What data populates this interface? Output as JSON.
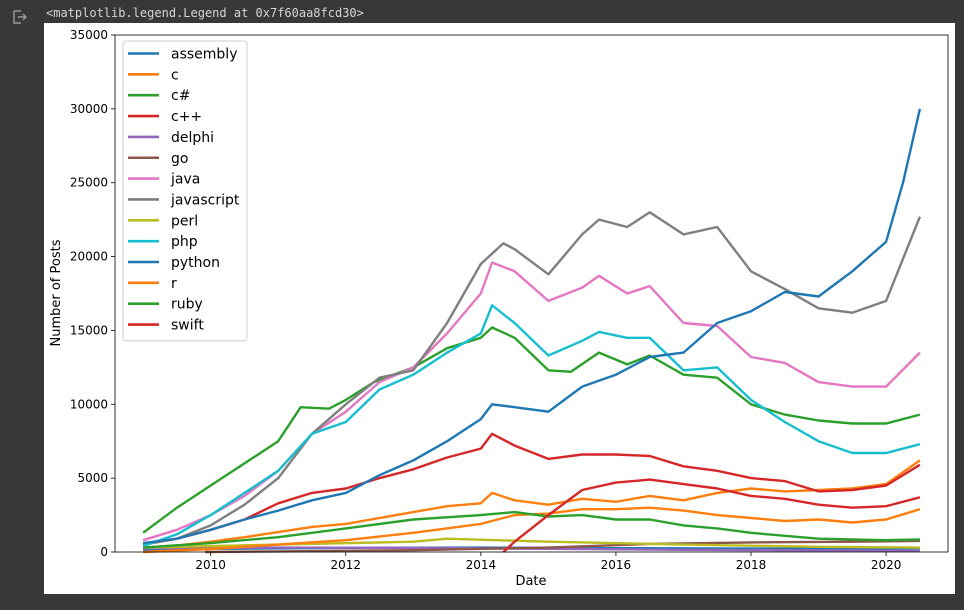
{
  "output": {
    "repr_text": "<matplotlib.legend.Legend at 0x7f60aa8fcd30>",
    "icon": "output-arrow-icon"
  },
  "chart_data": {
    "type": "line",
    "title": "",
    "xlabel": "Date",
    "ylabel": "Number of Posts",
    "xlim": [
      "2008-08",
      "2020-12"
    ],
    "ylim": [
      0,
      35000
    ],
    "grid": false,
    "legend_placement": "top-left",
    "x_ticks": [
      "2010",
      "2012",
      "2014",
      "2016",
      "2018",
      "2020"
    ],
    "y_ticks": [
      "0",
      "5000",
      "10000",
      "15000",
      "20000",
      "25000",
      "30000",
      "35000"
    ],
    "series": [
      {
        "name": "assembly",
        "color": "#1f77b4",
        "points": [
          [
            "2009-01",
            150
          ],
          [
            "2010-01",
            220
          ],
          [
            "2012-01",
            280
          ],
          [
            "2014-01",
            300
          ],
          [
            "2016-01",
            260
          ],
          [
            "2018-01",
            230
          ],
          [
            "2020-07",
            250
          ]
        ]
      },
      {
        "name": "c",
        "color": "#ff7f0e",
        "points": [
          [
            "2009-01",
            300
          ],
          [
            "2009-07",
            450
          ],
          [
            "2010-01",
            700
          ],
          [
            "2010-07",
            1000
          ],
          [
            "2011-01",
            1350
          ],
          [
            "2011-07",
            1700
          ],
          [
            "2012-01",
            1900
          ],
          [
            "2012-07",
            2300
          ],
          [
            "2013-01",
            2700
          ],
          [
            "2013-07",
            3100
          ],
          [
            "2014-01",
            3300
          ],
          [
            "2014-03",
            4000
          ],
          [
            "2014-07",
            3500
          ],
          [
            "2015-01",
            3200
          ],
          [
            "2015-07",
            3600
          ],
          [
            "2016-01",
            3400
          ],
          [
            "2016-07",
            3800
          ],
          [
            "2017-01",
            3500
          ],
          [
            "2017-07",
            4000
          ],
          [
            "2018-01",
            4300
          ],
          [
            "2018-07",
            4100
          ],
          [
            "2019-01",
            4200
          ],
          [
            "2019-07",
            4300
          ],
          [
            "2020-01",
            4600
          ],
          [
            "2020-07",
            6200
          ]
        ]
      },
      {
        "name": "c#",
        "color": "#2ca02c",
        "points": [
          [
            "2009-01",
            1300
          ],
          [
            "2009-07",
            3000
          ],
          [
            "2010-01",
            4500
          ],
          [
            "2010-07",
            6000
          ],
          [
            "2011-01",
            7500
          ],
          [
            "2011-05",
            9800
          ],
          [
            "2011-10",
            9700
          ],
          [
            "2012-01",
            10300
          ],
          [
            "2012-06",
            11500
          ],
          [
            "2013-01",
            12500
          ],
          [
            "2013-07",
            13800
          ],
          [
            "2014-01",
            14500
          ],
          [
            "2014-03",
            15200
          ],
          [
            "2014-07",
            14500
          ],
          [
            "2015-01",
            12300
          ],
          [
            "2015-05",
            12200
          ],
          [
            "2015-10",
            13500
          ],
          [
            "2016-03",
            12700
          ],
          [
            "2016-07",
            13300
          ],
          [
            "2017-01",
            12000
          ],
          [
            "2017-07",
            11800
          ],
          [
            "2018-01",
            10000
          ],
          [
            "2018-07",
            9300
          ],
          [
            "2019-01",
            8900
          ],
          [
            "2019-07",
            8700
          ],
          [
            "2020-01",
            8700
          ],
          [
            "2020-07",
            9300
          ]
        ]
      },
      {
        "name": "c++",
        "color": "#d62728",
        "points": [
          [
            "2009-01",
            500
          ],
          [
            "2009-07",
            900
          ],
          [
            "2010-01",
            1500
          ],
          [
            "2010-07",
            2200
          ],
          [
            "2011-01",
            3300
          ],
          [
            "2011-07",
            4000
          ],
          [
            "2012-01",
            4300
          ],
          [
            "2012-07",
            5000
          ],
          [
            "2013-01",
            5600
          ],
          [
            "2013-07",
            6400
          ],
          [
            "2014-01",
            7000
          ],
          [
            "2014-03",
            8000
          ],
          [
            "2014-07",
            7200
          ],
          [
            "2015-01",
            6300
          ],
          [
            "2015-07",
            6600
          ],
          [
            "2016-01",
            6600
          ],
          [
            "2016-07",
            6500
          ],
          [
            "2017-01",
            5800
          ],
          [
            "2017-07",
            5500
          ],
          [
            "2018-01",
            5000
          ],
          [
            "2018-07",
            4800
          ],
          [
            "2019-01",
            4100
          ],
          [
            "2019-07",
            4200
          ],
          [
            "2020-01",
            4500
          ],
          [
            "2020-07",
            5900
          ]
        ]
      },
      {
        "name": "delphi",
        "color": "#9467bd",
        "points": [
          [
            "2009-01",
            250
          ],
          [
            "2011-01",
            300
          ],
          [
            "2013-01",
            280
          ],
          [
            "2015-01",
            220
          ],
          [
            "2017-01",
            150
          ],
          [
            "2019-01",
            100
          ],
          [
            "2020-07",
            80
          ]
        ]
      },
      {
        "name": "go",
        "color": "#8c564b",
        "points": [
          [
            "2009-12",
            0
          ],
          [
            "2011-01",
            40
          ],
          [
            "2013-01",
            120
          ],
          [
            "2015-01",
            300
          ],
          [
            "2016-07",
            550
          ],
          [
            "2018-01",
            650
          ],
          [
            "2019-07",
            700
          ],
          [
            "2020-07",
            750
          ]
        ]
      },
      {
        "name": "java",
        "color": "#e377c2",
        "points": [
          [
            "2009-01",
            800
          ],
          [
            "2009-07",
            1500
          ],
          [
            "2010-01",
            2500
          ],
          [
            "2010-07",
            3800
          ],
          [
            "2011-01",
            5500
          ],
          [
            "2011-07",
            8000
          ],
          [
            "2012-01",
            9500
          ],
          [
            "2012-07",
            11500
          ],
          [
            "2013-01",
            12500
          ],
          [
            "2013-07",
            14800
          ],
          [
            "2014-01",
            17500
          ],
          [
            "2014-03",
            19600
          ],
          [
            "2014-07",
            19000
          ],
          [
            "2015-01",
            17000
          ],
          [
            "2015-07",
            17900
          ],
          [
            "2015-10",
            18700
          ],
          [
            "2016-03",
            17500
          ],
          [
            "2016-07",
            18000
          ],
          [
            "2017-01",
            15500
          ],
          [
            "2017-07",
            15300
          ],
          [
            "2018-01",
            13200
          ],
          [
            "2018-07",
            12800
          ],
          [
            "2019-01",
            11500
          ],
          [
            "2019-07",
            11200
          ],
          [
            "2020-01",
            11200
          ],
          [
            "2020-07",
            13500
          ]
        ]
      },
      {
        "name": "javascript",
        "color": "#7f7f7f",
        "points": [
          [
            "2009-01",
            500
          ],
          [
            "2009-07",
            900
          ],
          [
            "2010-01",
            1800
          ],
          [
            "2010-07",
            3200
          ],
          [
            "2011-01",
            5000
          ],
          [
            "2011-07",
            8000
          ],
          [
            "2012-01",
            10000
          ],
          [
            "2012-07",
            11800
          ],
          [
            "2013-01",
            12300
          ],
          [
            "2013-07",
            15500
          ],
          [
            "2014-01",
            19500
          ],
          [
            "2014-05",
            20900
          ],
          [
            "2014-07",
            20500
          ],
          [
            "2015-01",
            18800
          ],
          [
            "2015-07",
            21500
          ],
          [
            "2015-10",
            22500
          ],
          [
            "2016-03",
            22000
          ],
          [
            "2016-07",
            23000
          ],
          [
            "2017-01",
            21500
          ],
          [
            "2017-07",
            22000
          ],
          [
            "2018-01",
            19000
          ],
          [
            "2018-07",
            17800
          ],
          [
            "2019-01",
            16500
          ],
          [
            "2019-07",
            16200
          ],
          [
            "2020-01",
            17000
          ],
          [
            "2020-07",
            22700
          ]
        ]
      },
      {
        "name": "perl",
        "color": "#bcbd22",
        "points": [
          [
            "2009-01",
            300
          ],
          [
            "2011-01",
            500
          ],
          [
            "2013-01",
            700
          ],
          [
            "2013-07",
            900
          ],
          [
            "2015-01",
            700
          ],
          [
            "2017-01",
            500
          ],
          [
            "2019-01",
            350
          ],
          [
            "2020-07",
            300
          ]
        ]
      },
      {
        "name": "php",
        "color": "#17becf",
        "points": [
          [
            "2009-01",
            400
          ],
          [
            "2009-07",
            1200
          ],
          [
            "2010-01",
            2500
          ],
          [
            "2010-07",
            4000
          ],
          [
            "2011-01",
            5500
          ],
          [
            "2011-07",
            8000
          ],
          [
            "2012-01",
            8800
          ],
          [
            "2012-07",
            11000
          ],
          [
            "2013-01",
            12000
          ],
          [
            "2013-07",
            13500
          ],
          [
            "2014-01",
            14800
          ],
          [
            "2014-03",
            16700
          ],
          [
            "2014-07",
            15500
          ],
          [
            "2015-01",
            13300
          ],
          [
            "2015-07",
            14300
          ],
          [
            "2015-10",
            14900
          ],
          [
            "2016-03",
            14500
          ],
          [
            "2016-07",
            14500
          ],
          [
            "2017-01",
            12300
          ],
          [
            "2017-07",
            12500
          ],
          [
            "2018-01",
            10300
          ],
          [
            "2018-07",
            8800
          ],
          [
            "2019-01",
            7500
          ],
          [
            "2019-07",
            6700
          ],
          [
            "2020-01",
            6700
          ],
          [
            "2020-07",
            7300
          ]
        ]
      },
      {
        "name": "python",
        "color": "#1f77b4",
        "points": [
          [
            "2009-01",
            600
          ],
          [
            "2009-07",
            900
          ],
          [
            "2010-01",
            1500
          ],
          [
            "2010-07",
            2200
          ],
          [
            "2011-01",
            2800
          ],
          [
            "2011-07",
            3500
          ],
          [
            "2012-01",
            4000
          ],
          [
            "2012-07",
            5200
          ],
          [
            "2013-01",
            6200
          ],
          [
            "2013-07",
            7500
          ],
          [
            "2014-01",
            9000
          ],
          [
            "2014-03",
            10000
          ],
          [
            "2014-07",
            9800
          ],
          [
            "2015-01",
            9500
          ],
          [
            "2015-07",
            11200
          ],
          [
            "2016-01",
            12000
          ],
          [
            "2016-07",
            13200
          ],
          [
            "2017-01",
            13500
          ],
          [
            "2017-07",
            15500
          ],
          [
            "2018-01",
            16300
          ],
          [
            "2018-07",
            17600
          ],
          [
            "2019-01",
            17300
          ],
          [
            "2019-07",
            19000
          ],
          [
            "2020-01",
            21000
          ],
          [
            "2020-04",
            25000
          ],
          [
            "2020-07",
            30000
          ]
        ]
      },
      {
        "name": "r",
        "color": "#ff7f0e",
        "points": [
          [
            "2009-01",
            0
          ],
          [
            "2010-01",
            200
          ],
          [
            "2011-01",
            500
          ],
          [
            "2012-01",
            800
          ],
          [
            "2013-01",
            1300
          ],
          [
            "2014-01",
            1900
          ],
          [
            "2014-07",
            2500
          ],
          [
            "2015-01",
            2600
          ],
          [
            "2015-07",
            2900
          ],
          [
            "2016-01",
            2900
          ],
          [
            "2016-07",
            3000
          ],
          [
            "2017-01",
            2800
          ],
          [
            "2017-07",
            2500
          ],
          [
            "2018-01",
            2300
          ],
          [
            "2018-07",
            2100
          ],
          [
            "2019-01",
            2200
          ],
          [
            "2019-07",
            2000
          ],
          [
            "2020-01",
            2200
          ],
          [
            "2020-07",
            2900
          ]
        ]
      },
      {
        "name": "ruby",
        "color": "#2ca02c",
        "points": [
          [
            "2009-01",
            300
          ],
          [
            "2010-01",
            600
          ],
          [
            "2011-01",
            1000
          ],
          [
            "2012-01",
            1600
          ],
          [
            "2013-01",
            2200
          ],
          [
            "2014-01",
            2500
          ],
          [
            "2014-07",
            2700
          ],
          [
            "2015-01",
            2400
          ],
          [
            "2015-07",
            2500
          ],
          [
            "2016-01",
            2200
          ],
          [
            "2016-07",
            2200
          ],
          [
            "2017-01",
            1800
          ],
          [
            "2017-07",
            1600
          ],
          [
            "2018-01",
            1300
          ],
          [
            "2018-07",
            1100
          ],
          [
            "2019-01",
            900
          ],
          [
            "2020-01",
            800
          ],
          [
            "2020-07",
            850
          ]
        ]
      },
      {
        "name": "swift",
        "color": "#d62728",
        "points": [
          [
            "2014-05",
            0
          ],
          [
            "2014-07",
            700
          ],
          [
            "2015-01",
            2500
          ],
          [
            "2015-07",
            4200
          ],
          [
            "2016-01",
            4700
          ],
          [
            "2016-07",
            4900
          ],
          [
            "2017-01",
            4600
          ],
          [
            "2017-07",
            4300
          ],
          [
            "2018-01",
            3800
          ],
          [
            "2018-07",
            3600
          ],
          [
            "2019-01",
            3200
          ],
          [
            "2019-07",
            3000
          ],
          [
            "2020-01",
            3100
          ],
          [
            "2020-07",
            3700
          ]
        ]
      }
    ]
  }
}
